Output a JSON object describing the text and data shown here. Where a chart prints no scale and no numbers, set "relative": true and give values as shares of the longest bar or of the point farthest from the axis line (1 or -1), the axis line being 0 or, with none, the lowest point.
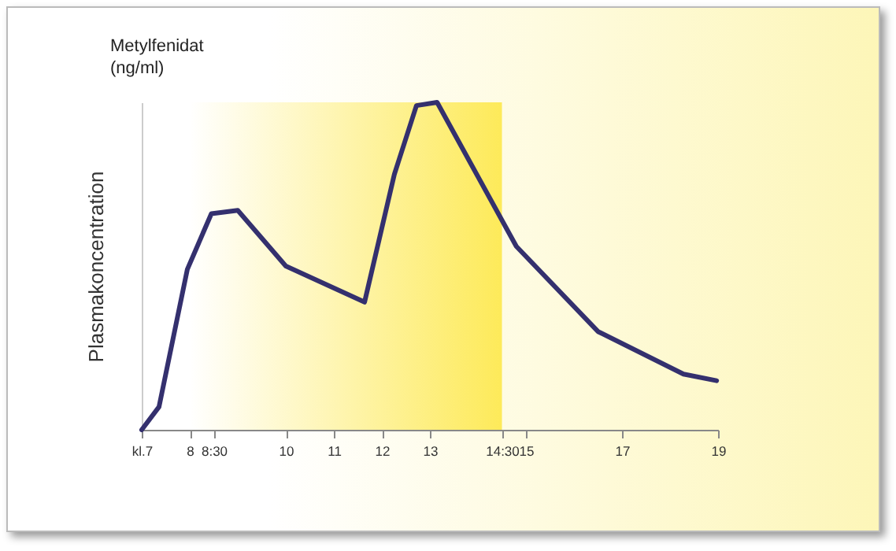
{
  "chart_data": {
    "type": "line",
    "title": "Metylfenidat (ng/ml)",
    "ylabel": "Plasmakoncentration",
    "relative": true,
    "grid": false,
    "marker": "none",
    "line_style": "solid",
    "x": [
      7,
      7.36,
      7.95,
      8.45,
      9.0,
      10.0,
      11.64,
      12.26,
      12.72,
      13.15,
      14.8,
      16.5,
      18.28,
      18.97
    ],
    "series": [
      {
        "color": "#34306e",
        "values": [
          0,
          0.07,
          0.49,
          0.66,
          0.67,
          0.5,
          0.39,
          0.78,
          0.99,
          1,
          0.56,
          0.3,
          0.17,
          0.15
        ]
      }
    ],
    "xlim": [
      7,
      19
    ],
    "xticks": [
      {
        "value": 7,
        "label": "kl.7"
      },
      8,
      {
        "value": 8.5,
        "label": "8:30"
      },
      10,
      11,
      12,
      13,
      {
        "value": 14.5,
        "label": "14:30"
      },
      15,
      17,
      19
    ],
    "bands": [
      {
        "axis": "x",
        "from": 8,
        "to": 14.5,
        "color": "#fde84a"
      }
    ]
  }
}
